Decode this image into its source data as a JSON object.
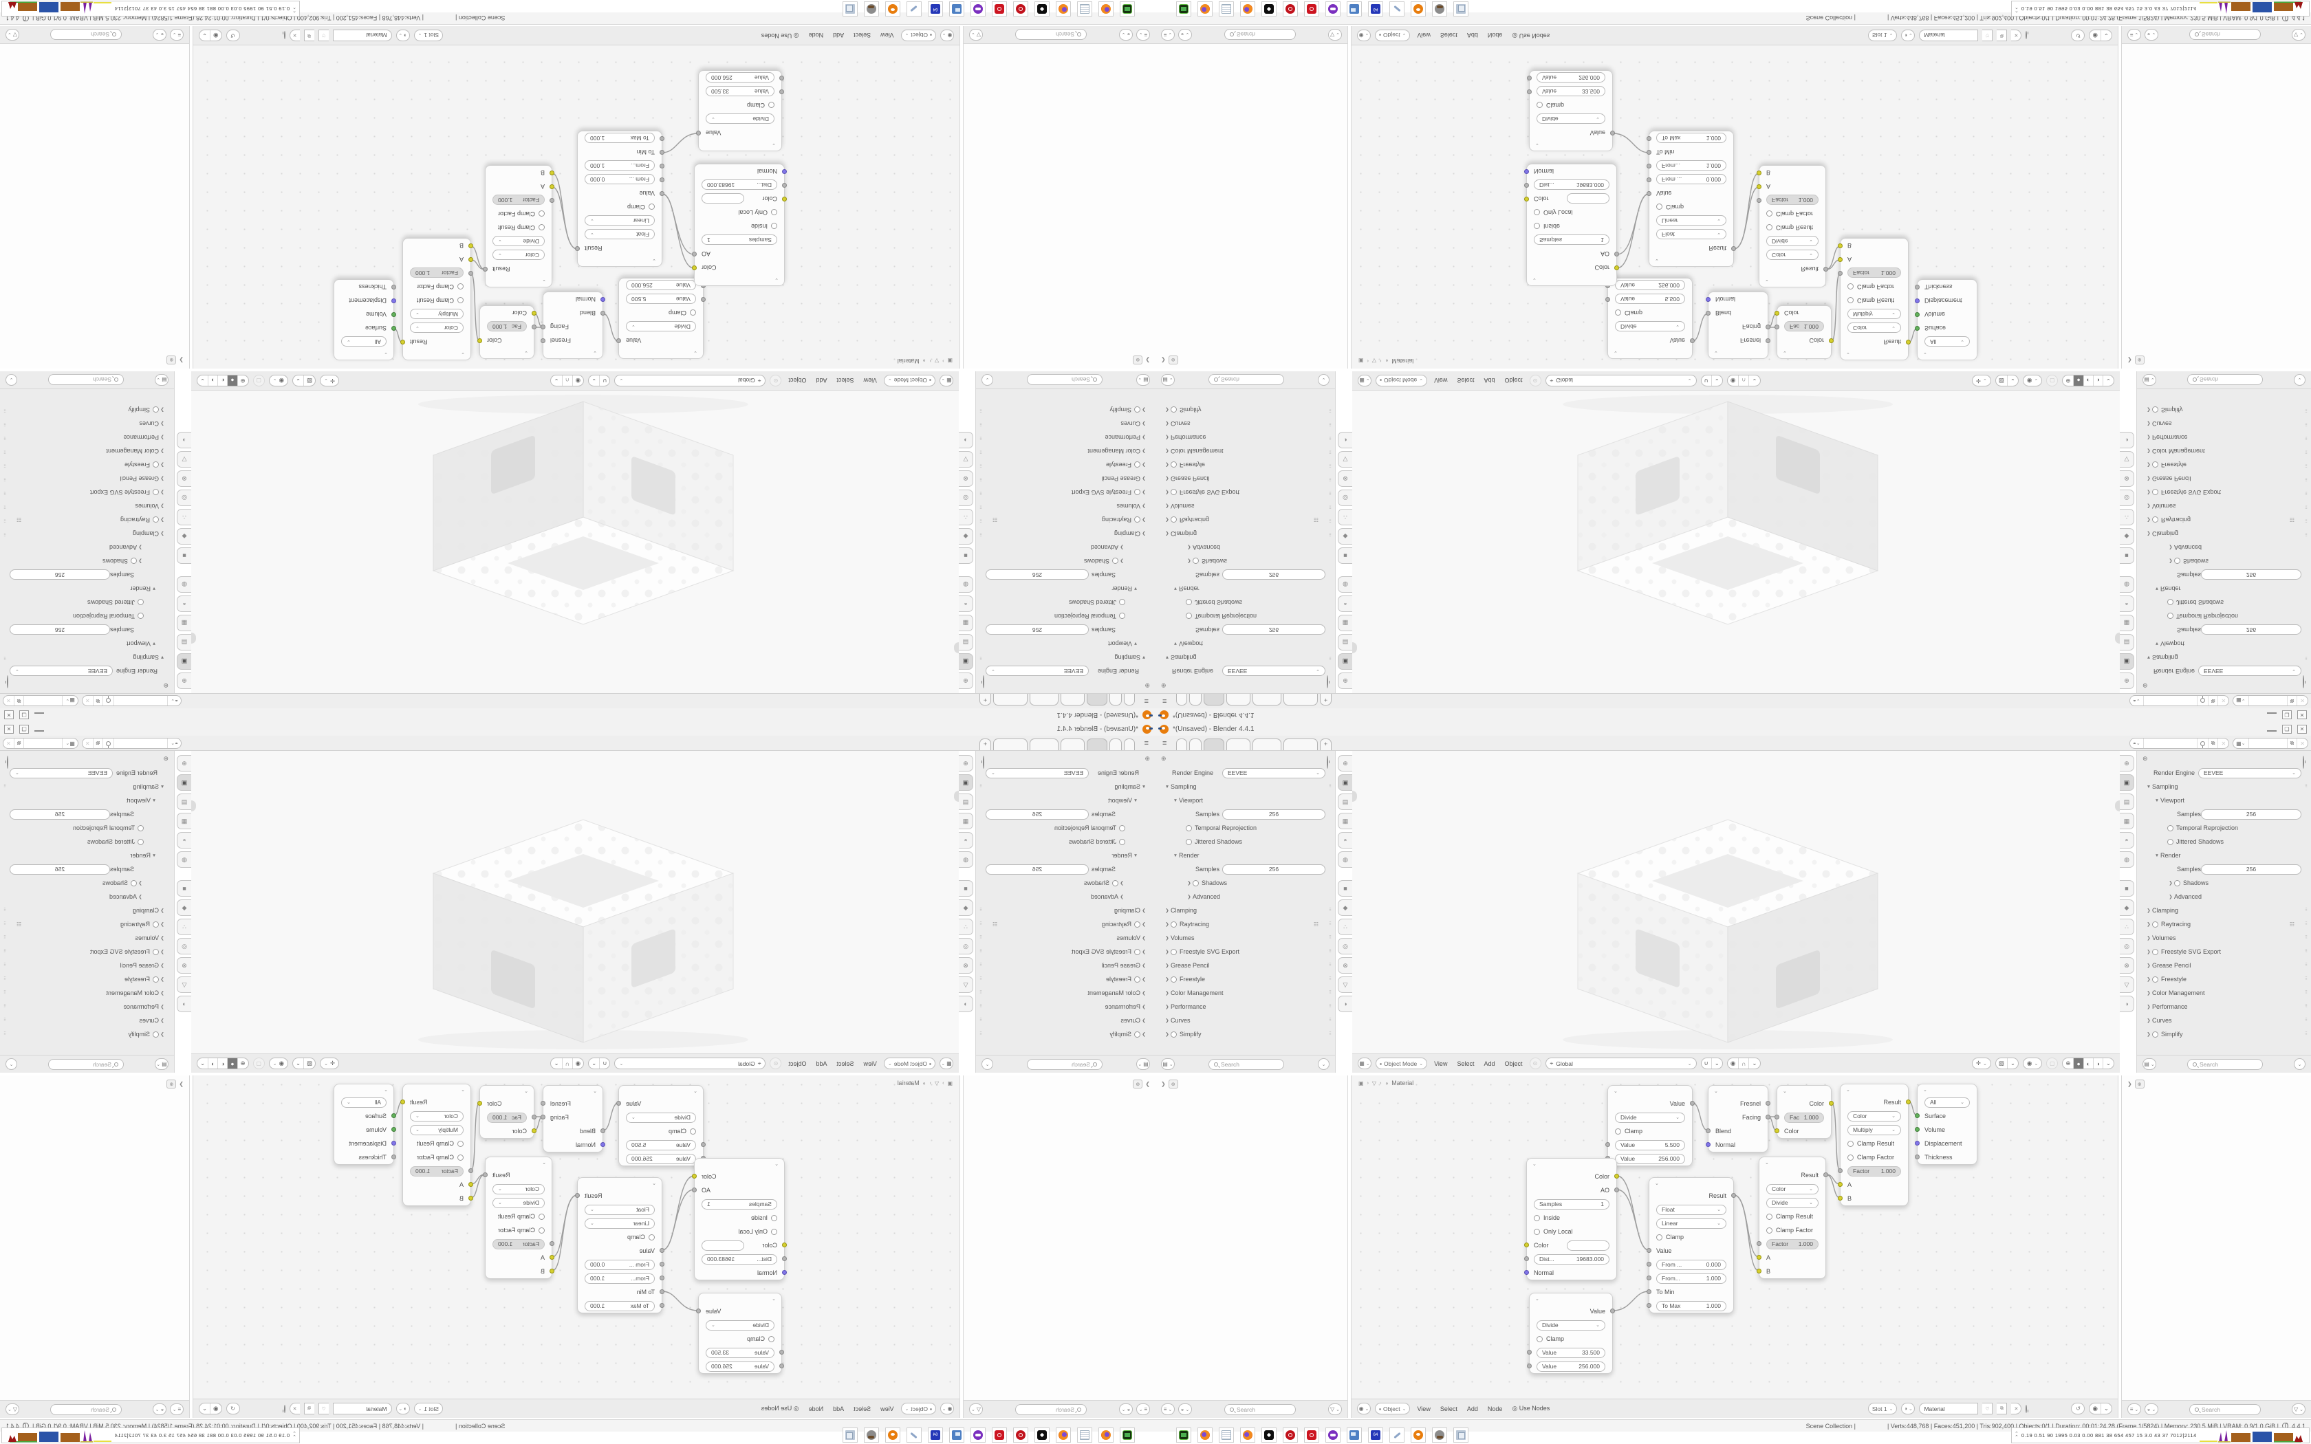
{
  "window": {
    "title": "*(Unsaved) - Blender 4.4.1",
    "minimize_label": "",
    "maximize_label": "❏",
    "close_label": "✕"
  },
  "topbar": {
    "hamburger": "≡",
    "new_tab_label": "+",
    "scene_field": "",
    "viewlayer_field": ""
  },
  "properties": {
    "rows": [
      {
        "label": "Render Engine",
        "value": "EEVEE"
      },
      {
        "label": "Sampling"
      },
      {
        "label": "Viewport"
      },
      {
        "label": "Samples",
        "value": "256"
      },
      {
        "label": "Temporal Reprojection"
      },
      {
        "label": "Jittered Shadows"
      },
      {
        "label": "Render"
      },
      {
        "label": "Samples",
        "value": "256"
      },
      {
        "label": "Shadows"
      },
      {
        "label": "Advanced"
      },
      {
        "label": "Clamping"
      },
      {
        "label": "Raytracing"
      },
      {
        "label": "Volumes"
      },
      {
        "label": "Freestyle SVG Export"
      },
      {
        "label": "Grease Pencil"
      },
      {
        "label": "Freestyle"
      },
      {
        "label": "Color Management"
      },
      {
        "label": "Performance"
      },
      {
        "label": "Curves"
      },
      {
        "label": "Simplify"
      }
    ],
    "search_placeholder": "Search"
  },
  "viewport_header": {
    "mode": "Object Mode",
    "menus": [
      "View",
      "Select",
      "Add",
      "Object"
    ],
    "orientation": "Global"
  },
  "sidecol_footer": {
    "search_placeholder": "Search",
    "funnel": "▽"
  },
  "node_editor": {
    "breadcrumb": {
      "material": "Material"
    },
    "footer": {
      "shader_type": "Object",
      "menus": [
        "View",
        "Select",
        "Add",
        "Node"
      ],
      "use_nodes": "Use Nodes",
      "slot": "Slot 1",
      "material_name": "Material"
    },
    "nodes": {
      "math1": {
        "out": "Value",
        "op": "Divide",
        "clamp": "Clamp",
        "v1l": "Value",
        "v1": "5.500",
        "v2l": "Value",
        "v2": "256.000"
      },
      "layer_weight": {
        "out1": "Fresnel",
        "out2": "Facing",
        "in1": "Blend",
        "in2": "Normal"
      },
      "mix_small": {
        "out": "Color",
        "facl": "Fac",
        "fac": "1.000",
        "in2": "Color"
      },
      "mix_multiply": {
        "out": "Result",
        "type": "Color",
        "blend": "Multiply",
        "c1": "Clamp Result",
        "c2": "Clamp Factor",
        "facl": "Factor",
        "fac": "1.000",
        "a": "A",
        "b": "B"
      },
      "material_output": {
        "target": "All",
        "in1": "Surface",
        "in2": "Volume",
        "in3": "Displacement",
        "in4": "Thickness"
      },
      "mix_divide": {
        "out": "Result",
        "type": "Color",
        "blend": "Divide",
        "c1": "Clamp Result",
        "c2": "Clamp Factor",
        "facl": "Factor",
        "fac": "1.000",
        "a": "A",
        "b": "B"
      },
      "map_range": {
        "out": "Result",
        "type": "Float",
        "interp": "Linear",
        "clamp": "Clamp",
        "in1": "Value",
        "f1l": "From ...",
        "f1": "0.000",
        "f2l": "From...",
        "f2": "1.000",
        "tminl": "To Min",
        "tmaxl": "To Max",
        "tmax": "1.000"
      },
      "ao": {
        "out1": "Color",
        "out2": "AO",
        "samplesl": "Samples",
        "samples": "1",
        "inside": "Inside",
        "onlylocal": "Only Local",
        "colorin": "Color",
        "distl": "Dist...",
        "dist": "19683.000",
        "normal": "Normal"
      },
      "math2": {
        "out": "Value",
        "op": "Divide",
        "clamp": "Clamp",
        "v1l": "Value",
        "v1": "33.500",
        "v2l": "Value",
        "v2": "256.000"
      }
    }
  },
  "status_bar": {
    "scene": "Scene Collection |",
    "stats": "| Verts:448,768 | Faces:451,200 | Tris:902,400 | Objects:0/1 | Duration: 00:01:24.28 (Frame 1/5824) | Memory: 230.5 MiB | VRAM: 0.9/1.0 GiB |",
    "version": "4.4.1"
  },
  "profiler": {
    "numbers": "0.19 0.51  90  1995 0.03 0.00  881   38   654  457   15   3.0   43   37   7012|2114"
  },
  "dock_icons": [
    "terminal",
    "firefox",
    "notepad",
    "firefox-2",
    "inkscape-dark",
    "package-red-round",
    "package-red-square",
    "github-mascot",
    "remote-desktop",
    "dosbox-64",
    "wrench-tool",
    "blender",
    "gimp",
    "documents"
  ]
}
